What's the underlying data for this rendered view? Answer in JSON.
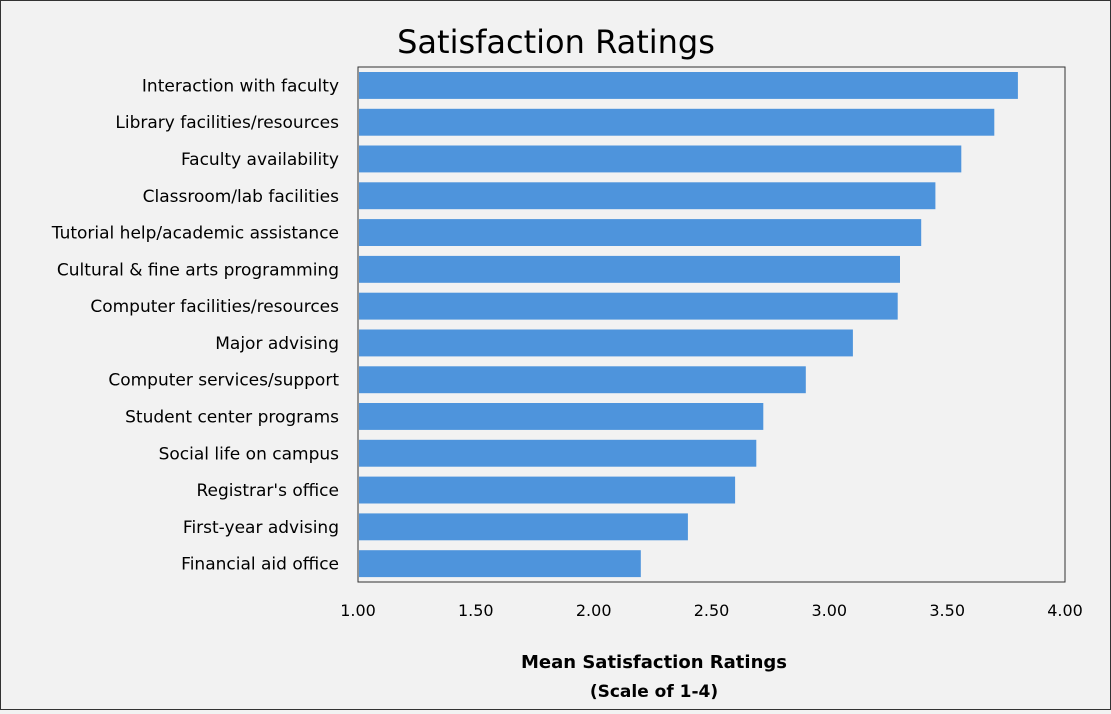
{
  "chart_data": {
    "type": "bar",
    "orientation": "horizontal",
    "title": "Satisfaction Ratings",
    "xlabel": "Mean Satisfaction Ratings",
    "xlabel_sub": "(Scale of 1-4)",
    "ylabel": "",
    "xlim": [
      1.0,
      4.0
    ],
    "xticks": [
      "1.00",
      "1.50",
      "2.00",
      "2.50",
      "3.00",
      "3.50",
      "4.00"
    ],
    "xtick_values": [
      1.0,
      1.5,
      2.0,
      2.5,
      3.0,
      3.5,
      4.0
    ],
    "grid": false,
    "bar_color": "#4e94dc",
    "categories": [
      "Interaction with faculty",
      "Library facilities/resources",
      "Faculty availability",
      "Classroom/lab facilities",
      "Tutorial help/academic assistance",
      "Cultural & fine arts programming",
      "Computer facilities/resources",
      "Major advising",
      "Computer services/support",
      "Student center programs",
      "Social life on campus",
      "Registrar's office",
      "First-year advising",
      "Financial aid office"
    ],
    "values": [
      3.8,
      3.7,
      3.56,
      3.45,
      3.39,
      3.3,
      3.29,
      3.1,
      2.9,
      2.72,
      2.69,
      2.6,
      2.4,
      2.2
    ]
  }
}
